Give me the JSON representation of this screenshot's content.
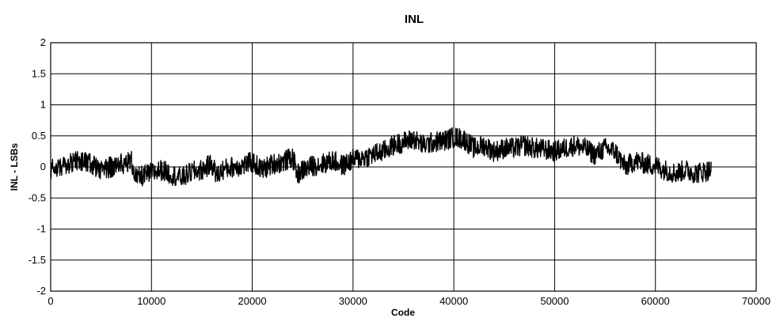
{
  "chart_data": {
    "type": "line",
    "title": "INL",
    "xlabel": "Code",
    "ylabel": "INL - LSBs",
    "xlim": [
      0,
      70000
    ],
    "ylim": [
      -2,
      2
    ],
    "x_ticks": [
      0,
      10000,
      20000,
      30000,
      40000,
      50000,
      60000,
      70000
    ],
    "x_tick_labels": [
      "0",
      "10000",
      "20000",
      "30000",
      "40000",
      "50000",
      "60000",
      "70000"
    ],
    "y_ticks": [
      -2,
      -1.5,
      -1,
      -0.5,
      0,
      0.5,
      1,
      1.5,
      2
    ],
    "y_tick_labels": [
      "-2",
      "-1.5",
      "-1",
      "-0.5",
      "0",
      "0.5",
      "1",
      "1.5",
      "2"
    ],
    "grid": true,
    "legend": "none",
    "series": [
      {
        "color": "#000000",
        "x": [
          0,
          1000,
          2000,
          3000,
          4000,
          5000,
          6000,
          7000,
          8000,
          8500,
          9000,
          10000,
          11000,
          12000,
          13000,
          14000,
          15000,
          16000,
          16500,
          17000,
          18000,
          19000,
          20000,
          21000,
          22000,
          23000,
          24000,
          24500,
          25000,
          26000,
          27000,
          28000,
          29000,
          30000,
          31000,
          32000,
          33000,
          34000,
          35000,
          36000,
          37000,
          38000,
          39000,
          40000,
          41000,
          42000,
          43000,
          44000,
          45000,
          46000,
          47000,
          48000,
          49000,
          50000,
          51000,
          52000,
          53000,
          54000,
          55000,
          56000,
          57000,
          58000,
          59000,
          60000,
          61000,
          62000,
          63000,
          64000,
          65535
        ],
        "y": [
          -0.05,
          0.0,
          0.05,
          0.1,
          0.05,
          -0.05,
          0.0,
          0.05,
          0.1,
          -0.2,
          -0.15,
          -0.1,
          -0.05,
          -0.12,
          -0.18,
          -0.08,
          -0.05,
          0.05,
          -0.15,
          -0.05,
          0.0,
          0.02,
          0.08,
          -0.05,
          0.05,
          0.08,
          0.15,
          -0.12,
          -0.05,
          0.02,
          0.05,
          0.1,
          0.02,
          0.12,
          0.15,
          0.2,
          0.25,
          0.35,
          0.4,
          0.45,
          0.35,
          0.4,
          0.42,
          0.48,
          0.45,
          0.3,
          0.35,
          0.25,
          0.3,
          0.3,
          0.35,
          0.3,
          0.28,
          0.25,
          0.3,
          0.35,
          0.3,
          0.2,
          0.3,
          0.25,
          0.0,
          0.1,
          0.05,
          0.02,
          -0.05,
          -0.1,
          -0.05,
          -0.1,
          -0.05
        ]
      }
    ]
  }
}
